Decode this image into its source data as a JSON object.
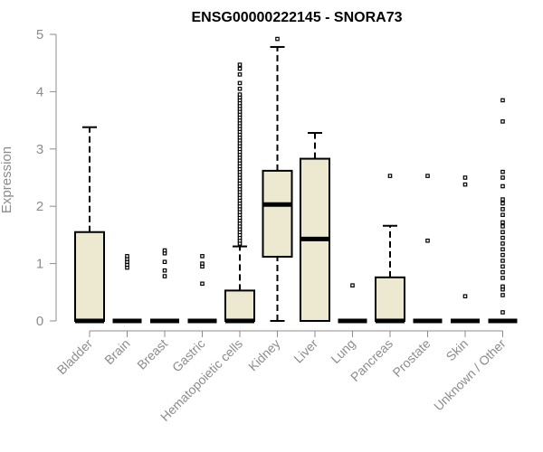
{
  "chart_data": {
    "type": "boxplot",
    "title": "ENSG00000222145 - SNORA73",
    "xlabel": "",
    "ylabel": "Expression",
    "ylim": [
      0,
      5
    ],
    "yticks": [
      "0",
      "1",
      "2",
      "3",
      "4",
      "5"
    ],
    "categories": [
      "Bladder",
      "Brain",
      "Breast",
      "Gastric",
      "Hematopoietic cells",
      "Kidney",
      "Liver",
      "Lung",
      "Pancreas",
      "Prostate",
      "Skin",
      "Unknown / Other"
    ],
    "box_fill": "#ede8d0",
    "box_stroke": "#000000",
    "axis_color": "#8c8c8c",
    "boxes": [
      {
        "min": 0,
        "q1": 0,
        "median": 0,
        "q3": 1.55,
        "max": 3.38,
        "outliers": []
      },
      {
        "min": 0,
        "q1": 0,
        "median": 0,
        "q3": 0,
        "max": 0,
        "outliers": [
          0.93,
          0.98,
          1.03,
          1.08,
          1.13
        ]
      },
      {
        "min": 0,
        "q1": 0,
        "median": 0,
        "q3": 0,
        "max": 0,
        "outliers": [
          0.78,
          0.88,
          1.03,
          1.18,
          1.23
        ]
      },
      {
        "min": 0,
        "q1": 0,
        "median": 0,
        "q3": 0,
        "max": 0,
        "outliers": [
          0.65,
          0.95,
          1.0,
          1.13
        ]
      },
      {
        "min": 0,
        "q1": 0,
        "median": 0,
        "q3": 0.53,
        "max": 1.3,
        "outliers": [
          1.35,
          1.4,
          1.45,
          1.5,
          1.55,
          1.6,
          1.65,
          1.7,
          1.75,
          1.8,
          1.85,
          1.9,
          1.95,
          2.0,
          2.05,
          2.1,
          2.15,
          2.2,
          2.25,
          2.3,
          2.35,
          2.4,
          2.45,
          2.5,
          2.55,
          2.6,
          2.65,
          2.7,
          2.75,
          2.8,
          2.85,
          2.9,
          2.95,
          3.0,
          3.05,
          3.1,
          3.15,
          3.2,
          3.25,
          3.3,
          3.35,
          3.4,
          3.45,
          3.5,
          3.55,
          3.6,
          3.65,
          3.7,
          3.75,
          3.8,
          3.85,
          3.9,
          3.95,
          4.05,
          4.15,
          4.3,
          4.4,
          4.47
        ]
      },
      {
        "min": 0,
        "q1": 1.12,
        "median": 2.03,
        "q3": 2.62,
        "max": 4.78,
        "outliers": [
          4.92
        ]
      },
      {
        "min": 0,
        "q1": 0,
        "median": 1.43,
        "q3": 2.83,
        "max": 3.28,
        "outliers": []
      },
      {
        "min": 0,
        "q1": 0,
        "median": 0,
        "q3": 0,
        "max": 0,
        "outliers": [
          0.62
        ]
      },
      {
        "min": 0,
        "q1": 0,
        "median": 0,
        "q3": 0.76,
        "max": 1.66,
        "outliers": [
          2.53
        ]
      },
      {
        "min": 0,
        "q1": 0,
        "median": 0,
        "q3": 0,
        "max": 0,
        "outliers": [
          1.4,
          2.53
        ]
      },
      {
        "min": 0,
        "q1": 0,
        "median": 0,
        "q3": 0,
        "max": 0,
        "outliers": [
          0.43,
          2.38,
          2.5
        ]
      },
      {
        "min": 0,
        "q1": 0,
        "median": 0,
        "q3": 0,
        "max": 0,
        "outliers": [
          0.15,
          0.45,
          0.55,
          0.6,
          0.75,
          0.85,
          0.95,
          1.05,
          1.15,
          1.25,
          1.35,
          1.45,
          1.55,
          1.65,
          1.72,
          1.85,
          1.95,
          2.05,
          2.12,
          2.35,
          2.5,
          2.6,
          3.48,
          3.85
        ]
      }
    ]
  }
}
